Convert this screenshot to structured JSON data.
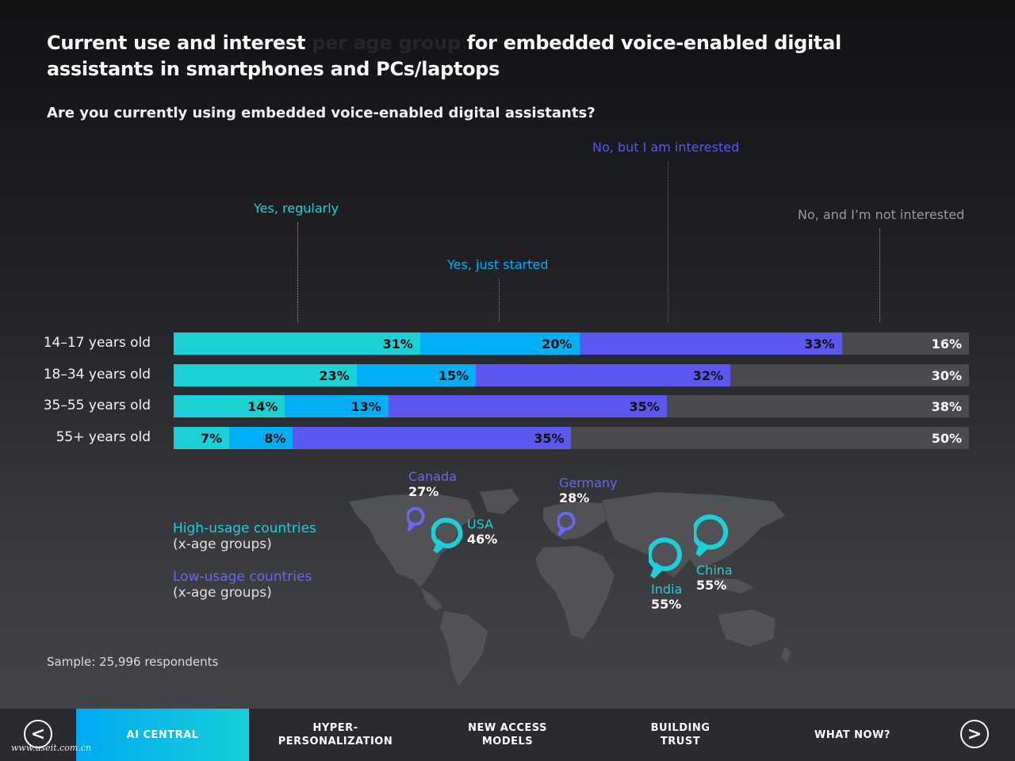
{
  "title_part1": "Current use and interest ",
  "title_dim": "per age group",
  "title_part2": " for embedded voice-enabled digital assistants in smartphones and PCs/laptops",
  "colors": {
    "regular": "#1cd1d6",
    "started": "#00aff5",
    "interested": "#5b57f0",
    "not": "#4a4b4e"
  },
  "chart_data": {
    "type": "bar",
    "stacked": true,
    "orientation": "horizontal",
    "title": "Are you currently using embedded voice-enabled digital assistants?",
    "categories": [
      "14–17 years old",
      "18–34 years old",
      "35–55 years old",
      "55+ years old"
    ],
    "series": [
      {
        "name": "Yes, regularly",
        "values": [
          31,
          23,
          14,
          7
        ]
      },
      {
        "name": "Yes, just started",
        "values": [
          20,
          15,
          13,
          8
        ]
      },
      {
        "name": "No, but I am interested",
        "values": [
          33,
          32,
          35,
          35
        ]
      },
      {
        "name": "No, and I’m not interested",
        "values": [
          16,
          30,
          38,
          50
        ]
      }
    ],
    "value_suffix": "%"
  },
  "legend": {
    "high_label": "High-usage countries",
    "high_sub": "(x-age groups)",
    "low_label": "Low-usage countries",
    "low_sub": "(x-age groups)"
  },
  "countries": {
    "canada": {
      "name": "Canada",
      "pct": "27%"
    },
    "usa": {
      "name": "USA",
      "pct": "46%"
    },
    "germany": {
      "name": "Germany",
      "pct": "28%"
    },
    "india": {
      "name": "India",
      "pct": "55%"
    },
    "china": {
      "name": "China",
      "pct": "55%"
    }
  },
  "sample": "Sample: 25,996 respondents",
  "nav": {
    "tabs": [
      "AI CENTRAL",
      "HYPER-\nPERSONALIZATION",
      "NEW ACCESS\nMODELS",
      "BUILDING\nTRUST",
      "WHAT NOW?"
    ],
    "prev_icon": "<",
    "next_icon": ">"
  },
  "watermark": "www.useit.com.cn"
}
